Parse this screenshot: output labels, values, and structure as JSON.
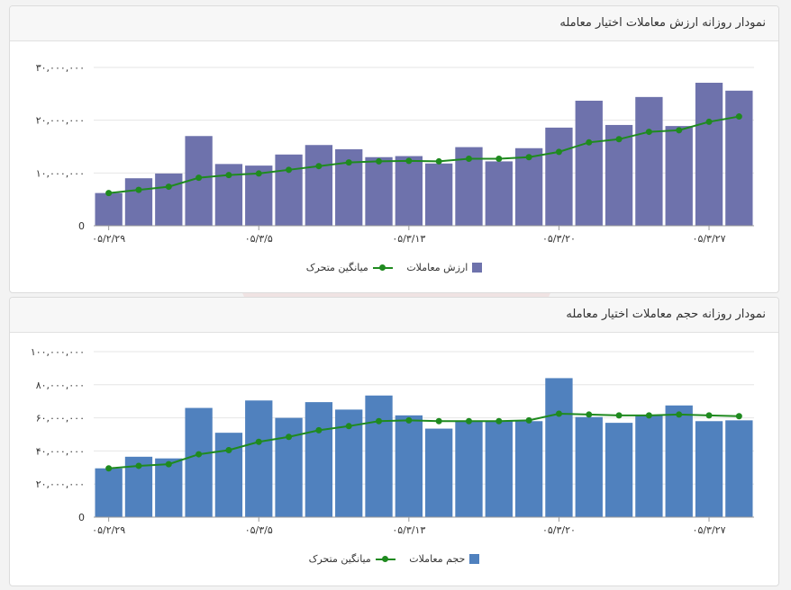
{
  "colors": {
    "value_bar": "#6e72ac",
    "volume_bar": "#5081be",
    "moving_average": "#1f8a1f",
    "grid": "#e6e6e6",
    "axis": "#999999"
  },
  "watermark": {
    "text": "آپشن یاز"
  },
  "chart_data": [
    {
      "type": "bar",
      "title": "نمودار روزانه ارزش معاملات اختیار معامله",
      "xlabel": "",
      "ylabel": "",
      "ylim": [
        0,
        30000000
      ],
      "y_ticks": [
        "0",
        "۱۰,۰۰۰,۰۰۰",
        "۲۰,۰۰۰,۰۰۰",
        "۳۰,۰۰۰,۰۰۰"
      ],
      "y_tick_values": [
        0,
        10000000,
        20000000,
        30000000
      ],
      "x_tick_labels": [
        "۰۵/۲/۲۹",
        "۰۵/۳/۵",
        "۰۵/۳/۱۳",
        "۰۵/۳/۲۰",
        "۰۵/۳/۲۷"
      ],
      "x_tick_indices": [
        0,
        5,
        10,
        15,
        20
      ],
      "grid": true,
      "legend_position": "bottom",
      "series": [
        {
          "name": "ارزش معاملات",
          "kind": "bar",
          "values": [
            6200000,
            9000000,
            9900000,
            17000000,
            11700000,
            11400000,
            13500000,
            15300000,
            14500000,
            13000000,
            13200000,
            11800000,
            14900000,
            12200000,
            14700000,
            18600000,
            23700000,
            19100000,
            24400000,
            18900000,
            27100000,
            25600000
          ]
        },
        {
          "name": "میانگین متحرک",
          "kind": "line",
          "values": [
            6200000,
            6800000,
            7400000,
            9100000,
            9600000,
            9900000,
            10600000,
            11300000,
            12000000,
            12200000,
            12300000,
            12200000,
            12700000,
            12700000,
            13000000,
            14000000,
            15800000,
            16400000,
            17800000,
            18100000,
            19700000,
            20700000
          ]
        }
      ]
    },
    {
      "type": "bar",
      "title": "نمودار روزانه حجم معاملات اختیار معامله",
      "xlabel": "",
      "ylabel": "",
      "ylim": [
        0,
        100000000
      ],
      "y_ticks": [
        "0",
        "۲۰,۰۰۰,۰۰۰",
        "۴۰,۰۰۰,۰۰۰",
        "۶۰,۰۰۰,۰۰۰",
        "۸۰,۰۰۰,۰۰۰",
        "۱۰۰,۰۰۰,۰۰۰"
      ],
      "y_tick_values": [
        0,
        20000000,
        40000000,
        60000000,
        80000000,
        100000000
      ],
      "x_tick_labels": [
        "۰۵/۲/۲۹",
        "۰۵/۳/۵",
        "۰۵/۳/۱۳",
        "۰۵/۳/۲۰",
        "۰۵/۳/۲۷"
      ],
      "x_tick_indices": [
        0,
        5,
        10,
        15,
        20
      ],
      "grid": true,
      "legend_position": "bottom",
      "series": [
        {
          "name": "حجم معاملات",
          "kind": "bar",
          "values": [
            29500000,
            36500000,
            35500000,
            66000000,
            51000000,
            70500000,
            60000000,
            69500000,
            65000000,
            73500000,
            61500000,
            53500000,
            58000000,
            58000000,
            58000000,
            84000000,
            60500000,
            57000000,
            61500000,
            67500000,
            58000000,
            58500000
          ]
        },
        {
          "name": "میانگین متحرک",
          "kind": "line",
          "values": [
            29500000,
            31000000,
            32000000,
            38000000,
            40500000,
            45500000,
            48500000,
            52500000,
            55000000,
            58000000,
            58500000,
            58000000,
            58000000,
            58000000,
            58500000,
            62500000,
            62000000,
            61500000,
            61500000,
            62000000,
            61500000,
            61000000
          ]
        }
      ]
    }
  ]
}
